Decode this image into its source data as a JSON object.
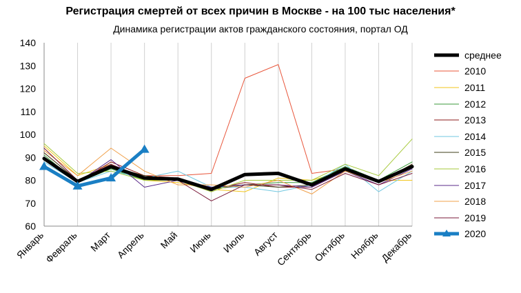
{
  "chart_data": {
    "type": "line",
    "title": "Регистрация смертей от всех причин в Москве - на 100 тыс населения*",
    "subtitle": "Динамика регистрации актов гражданского состояния, портал ОД",
    "xlabel": "",
    "ylabel": "",
    "ylim": [
      60,
      140
    ],
    "yticks": [
      60,
      70,
      80,
      90,
      100,
      110,
      120,
      130,
      140
    ],
    "grid": "vertical",
    "legend_position": "right",
    "categories": [
      "Январь",
      "Февраль",
      "Март",
      "Апрель",
      "Май",
      "Июнь",
      "Июль",
      "Август",
      "Сентябрь",
      "Октябрь",
      "Ноябрь",
      "Декабрь"
    ],
    "series": [
      {
        "name": "среднее",
        "color": "#000000",
        "width": 5,
        "values": [
          89.5,
          79.5,
          86,
          81,
          80.5,
          76,
          82.5,
          83,
          78,
          85,
          79.5,
          86
        ]
      },
      {
        "name": "2010",
        "color": "#e8553a",
        "width": 1,
        "values": [
          92,
          80,
          86,
          82,
          82,
          83,
          124.5,
          130.5,
          83,
          85,
          79,
          87
        ]
      },
      {
        "name": "2011",
        "color": "#f2c51a",
        "width": 1,
        "values": [
          95,
          82,
          87,
          80,
          79,
          76,
          75,
          81,
          80,
          84,
          80,
          80
        ]
      },
      {
        "name": "2012",
        "color": "#3a9a3a",
        "width": 1,
        "values": [
          91,
          79,
          85,
          80,
          80,
          77,
          78,
          79,
          79,
          86,
          80,
          88
        ]
      },
      {
        "name": "2013",
        "color": "#8b1a1a",
        "width": 1,
        "values": [
          90,
          79,
          88,
          82,
          81,
          76,
          79,
          77,
          77,
          84,
          79,
          86
        ]
      },
      {
        "name": "2014",
        "color": "#6fc7e0",
        "width": 1,
        "values": [
          88,
          79,
          84,
          81,
          84,
          77,
          77,
          75,
          78,
          87,
          75,
          84
        ]
      },
      {
        "name": "2015",
        "color": "#3d3d1a",
        "width": 1,
        "values": [
          92,
          80,
          86,
          82,
          80,
          76,
          78,
          77,
          78,
          85,
          79,
          87
        ]
      },
      {
        "name": "2016",
        "color": "#a6c93a",
        "width": 1,
        "values": [
          96,
          83,
          84,
          80,
          80,
          75,
          80,
          80,
          80,
          87,
          82,
          98
        ]
      },
      {
        "name": "2017",
        "color": "#5a2a8a",
        "width": 1,
        "values": [
          90,
          79,
          89,
          77,
          80,
          77,
          78,
          78,
          77,
          84,
          78,
          85
        ]
      },
      {
        "name": "2018",
        "color": "#f0a04a",
        "width": 1,
        "values": [
          93,
          82,
          94,
          84,
          78,
          78,
          77,
          80,
          74,
          84,
          79,
          84
        ]
      },
      {
        "name": "2019",
        "color": "#7a1a3a",
        "width": 1,
        "values": [
          94,
          80,
          87,
          81,
          80,
          71,
          78,
          78,
          76,
          83,
          78,
          83
        ]
      },
      {
        "name": "2020",
        "color": "#1a7fc4",
        "width": 5,
        "marker": "triangle",
        "values": [
          86,
          77.5,
          81,
          93.5,
          null,
          null,
          null,
          null,
          null,
          null,
          null,
          null
        ]
      }
    ]
  }
}
